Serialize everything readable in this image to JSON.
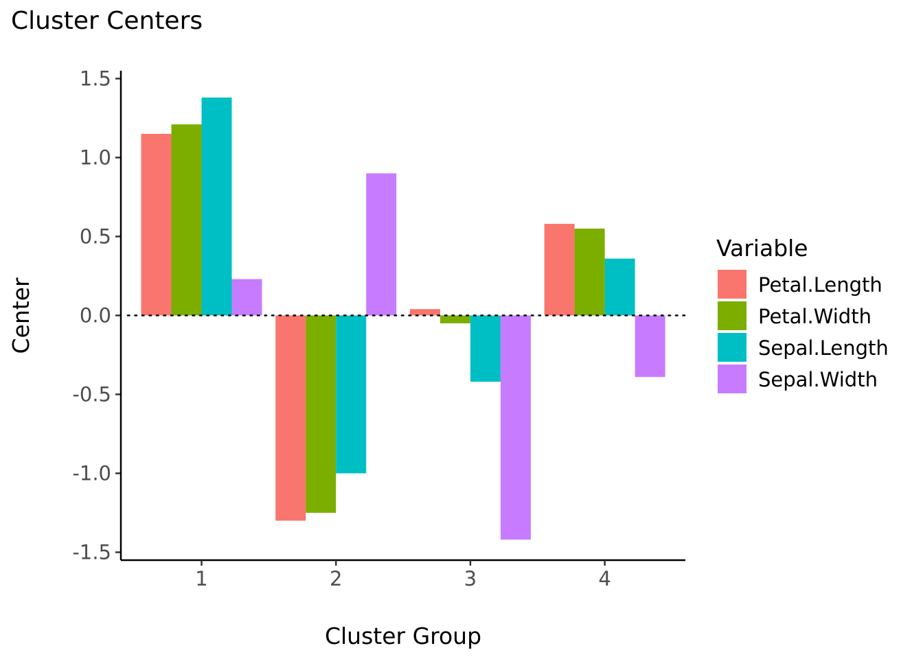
{
  "chart_data": {
    "type": "bar",
    "title": "Cluster Centers",
    "xlabel": "Cluster Group",
    "ylabel": "Center",
    "categories": [
      "1",
      "2",
      "3",
      "4"
    ],
    "ylim": [
      -1.55,
      1.55
    ],
    "yticks": [
      -1.5,
      -1.0,
      -0.5,
      0.0,
      0.5,
      1.0,
      1.5
    ],
    "ytick_labels": [
      "-1.5",
      "-1.0",
      "-0.5",
      "0.0",
      "0.5",
      "1.0",
      "1.5"
    ],
    "reference_line": {
      "y": 0,
      "style": "dotted"
    },
    "legend": {
      "title": "Variable",
      "position": "right"
    },
    "series": [
      {
        "name": "Petal.Length",
        "color": "#F8766D",
        "values": [
          1.15,
          -1.3,
          0.04,
          0.58
        ]
      },
      {
        "name": "Petal.Width",
        "color": "#7CAE00",
        "values": [
          1.21,
          -1.25,
          -0.05,
          0.55
        ]
      },
      {
        "name": "Sepal.Length",
        "color": "#00BFC4",
        "values": [
          1.38,
          -1.0,
          -0.42,
          0.36
        ]
      },
      {
        "name": "Sepal.Width",
        "color": "#C77CFF",
        "values": [
          0.23,
          0.9,
          -1.42,
          -0.39
        ]
      }
    ]
  }
}
